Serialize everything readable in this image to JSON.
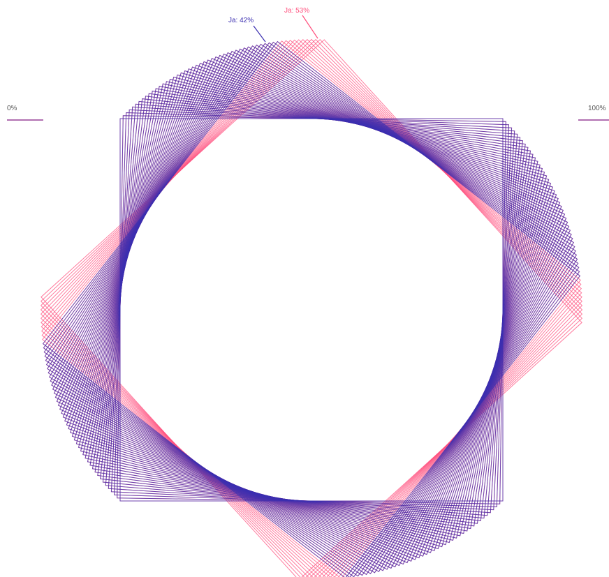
{
  "chart_data": {
    "type": "line",
    "title": "",
    "scale_labels": {
      "start": "0%",
      "end": "100%"
    },
    "series": [
      {
        "name": "Ja: 42%",
        "percent": 42,
        "color": "#3b2fb0"
      },
      {
        "name": "Ja: 53%",
        "percent": 53,
        "color": "#ff4f7d"
      }
    ],
    "grid": false,
    "legend": "none"
  }
}
